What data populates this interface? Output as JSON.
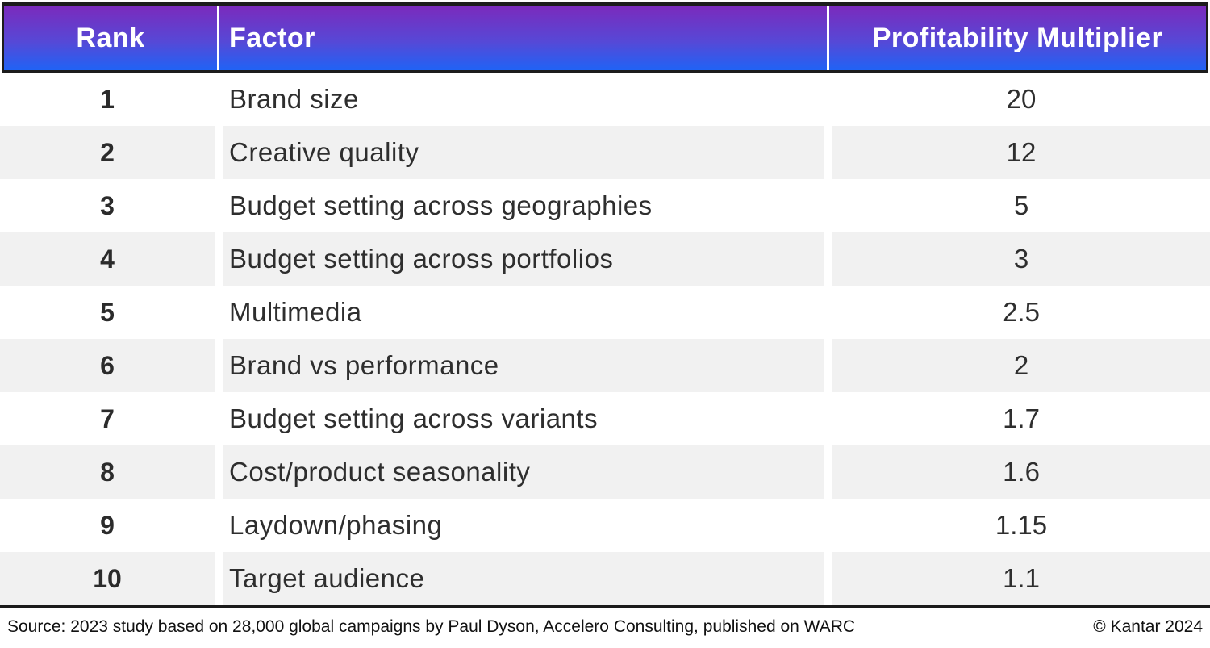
{
  "header": {
    "columns": [
      {
        "id": "rank",
        "label": "Rank"
      },
      {
        "id": "factor",
        "label": "Factor"
      },
      {
        "id": "multiplier",
        "label": "Profitability Multiplier"
      }
    ]
  },
  "rows": [
    {
      "rank": "1",
      "factor": "Brand size",
      "multiplier": "20"
    },
    {
      "rank": "2",
      "factor": "Creative quality",
      "multiplier": "12"
    },
    {
      "rank": "3",
      "factor": "Budget setting across geographies",
      "multiplier": "5"
    },
    {
      "rank": "4",
      "factor": "Budget setting across portfolios",
      "multiplier": "3"
    },
    {
      "rank": "5",
      "factor": "Multimedia",
      "multiplier": "2.5"
    },
    {
      "rank": "6",
      "factor": "Brand vs performance",
      "multiplier": "2"
    },
    {
      "rank": "7",
      "factor": "Budget setting across variants",
      "multiplier": "1.7"
    },
    {
      "rank": "8",
      "factor": "Cost/product seasonality",
      "multiplier": "1.6"
    },
    {
      "rank": "9",
      "factor": "Laydown/phasing",
      "multiplier": "1.15"
    },
    {
      "rank": "10",
      "factor": "Target audience",
      "multiplier": "1.1"
    }
  ],
  "footer": {
    "source": "Source: 2023 study based on 28,000 global campaigns by Paul Dyson, Accelero Consulting, published on WARC",
    "copyright": "© Kantar 2024"
  },
  "colors": {
    "header_gradient_top": "#7b2abc",
    "header_gradient_bottom": "#2063f5",
    "header_text": "#ffffff",
    "row_alt_background": "#f1f1f1",
    "border_dark": "#1c1c1c",
    "body_text": "#2e2e2e"
  },
  "chart_data": {
    "type": "table",
    "columns": [
      "Rank",
      "Factor",
      "Profitability Multiplier"
    ],
    "rows": [
      [
        1,
        "Brand size",
        20
      ],
      [
        2,
        "Creative quality",
        12
      ],
      [
        3,
        "Budget setting across geographies",
        5
      ],
      [
        4,
        "Budget setting across portfolios",
        3
      ],
      [
        5,
        "Multimedia",
        2.5
      ],
      [
        6,
        "Brand vs performance",
        2
      ],
      [
        7,
        "Budget setting across variants",
        1.7
      ],
      [
        8,
        "Cost/product seasonality",
        1.6
      ],
      [
        9,
        "Laydown/phasing",
        1.15
      ],
      [
        10,
        "Target audience",
        1.1
      ]
    ],
    "source": "Source: 2023 study based on 28,000 global campaigns by Paul Dyson, Accelero Consulting, published on WARC",
    "attribution": "© Kantar 2024"
  }
}
